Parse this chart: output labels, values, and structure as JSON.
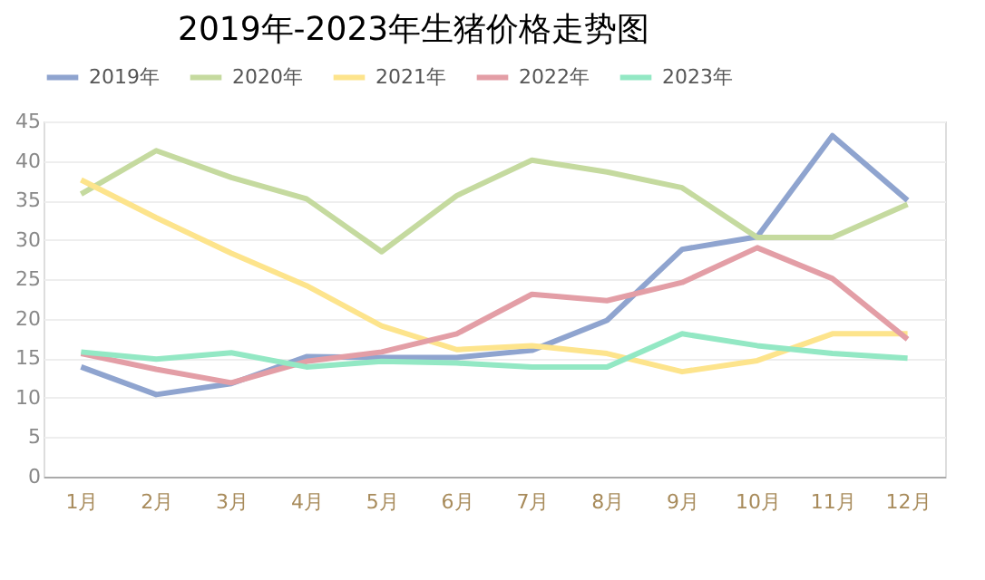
{
  "chart_data": {
    "type": "line",
    "title": "2019年-2023年生猪价格走势图",
    "categories": [
      "1月",
      "2月",
      "3月",
      "4月",
      "5月",
      "6月",
      "7月",
      "8月",
      "9月",
      "10月",
      "11月",
      "12月"
    ],
    "series": [
      {
        "name": "2019年",
        "color": "#8fa4cf",
        "values": [
          13.9,
          10.4,
          11.8,
          15.2,
          15.1,
          15.1,
          16.0,
          19.8,
          28.8,
          30.4,
          43.2,
          35.0
        ]
      },
      {
        "name": "2020年",
        "color": "#c5da9f",
        "values": [
          35.8,
          41.3,
          37.9,
          35.2,
          28.5,
          35.6,
          40.1,
          38.6,
          36.6,
          30.3,
          30.3,
          34.5
        ]
      },
      {
        "name": "2021年",
        "color": "#fde48c",
        "values": [
          37.6,
          32.8,
          28.3,
          24.2,
          19.1,
          16.1,
          16.6,
          15.6,
          13.3,
          14.7,
          18.1,
          18.1
        ]
      },
      {
        "name": "2022年",
        "color": "#e39ea6",
        "values": [
          15.6,
          13.6,
          11.9,
          14.6,
          15.8,
          18.1,
          23.1,
          22.3,
          24.6,
          29.0,
          25.1,
          17.4
        ]
      },
      {
        "name": "2023年",
        "color": "#93e8c4",
        "values": [
          15.8,
          14.9,
          15.7,
          13.9,
          14.6,
          14.4,
          13.9,
          13.9,
          18.1,
          16.6,
          15.6,
          15.0
        ]
      }
    ],
    "ylim": [
      0,
      45
    ],
    "yticks": [
      0,
      5,
      10,
      15,
      20,
      25,
      30,
      35,
      40,
      45
    ],
    "grid": "y",
    "legend": "top",
    "marker": "none",
    "line_style": "solid"
  }
}
